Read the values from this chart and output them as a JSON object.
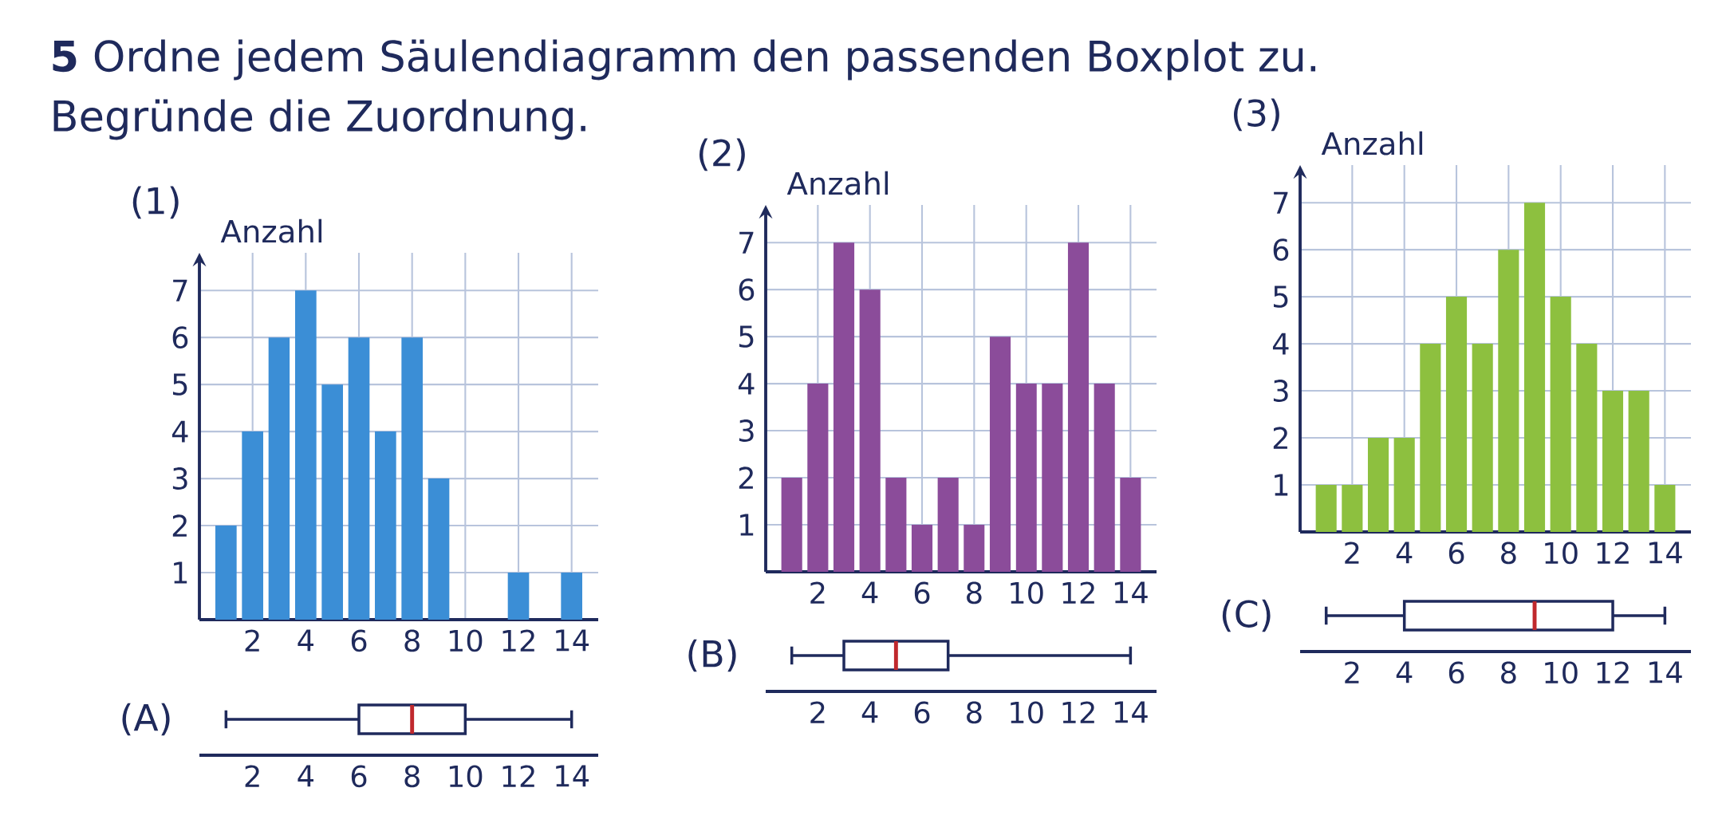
{
  "chart_data": [
    {
      "type": "bar",
      "title": "(1)",
      "ylabel": "Anzahl",
      "color": "#3b8ed6",
      "x": [
        1,
        2,
        3,
        4,
        5,
        6,
        7,
        8,
        9,
        12,
        14
      ],
      "values": [
        2,
        4,
        6,
        7,
        5,
        6,
        4,
        6,
        3,
        1,
        1
      ],
      "xlim": [
        0,
        15
      ],
      "ylim": [
        0,
        7.8
      ],
      "xticks": [
        2,
        4,
        6,
        8,
        10,
        12,
        14
      ],
      "yticks": [
        1,
        2,
        3,
        4,
        5,
        6,
        7
      ],
      "grid": true,
      "annotations": [
        "**5**  Ordne jedem Säulendiagramm den passenden Boxplot zu.",
        "Begründe die Zuordnung."
      ]
    },
    {
      "type": "bar",
      "title": "(2)",
      "ylabel": "Anzahl",
      "color": "#8b4c9a",
      "x": [
        1,
        2,
        3,
        4,
        5,
        6,
        7,
        8,
        9,
        10,
        11,
        12,
        13,
        14
      ],
      "values": [
        2,
        4,
        7,
        6,
        2,
        1,
        2,
        1,
        5,
        4,
        4,
        7,
        4,
        2
      ],
      "xlim": [
        0,
        15
      ],
      "ylim": [
        0,
        7.8
      ],
      "xticks": [
        2,
        4,
        6,
        8,
        10,
        12,
        14
      ],
      "yticks": [
        1,
        2,
        3,
        4,
        5,
        6,
        7
      ],
      "grid": true
    },
    {
      "type": "bar",
      "title": "(3)",
      "ylabel": "Anzahl",
      "color": "#8dc03f",
      "x": [
        1,
        2,
        3,
        4,
        5,
        6,
        7,
        8,
        9,
        10,
        11,
        12,
        13,
        14
      ],
      "values": [
        1,
        1,
        2,
        2,
        4,
        5,
        4,
        6,
        7,
        5,
        4,
        3,
        3,
        1
      ],
      "xlim": [
        0,
        15
      ],
      "ylim": [
        0,
        7.8
      ],
      "xticks": [
        2,
        4,
        6,
        8,
        10,
        12,
        14
      ],
      "yticks": [
        1,
        2,
        3,
        4,
        5,
        6,
        7
      ],
      "grid": true
    },
    {
      "type": "box",
      "orientation": "horizontal",
      "categories": [
        "(A)"
      ],
      "color": "#1f2a5c",
      "boxes": [
        {
          "low": 1,
          "q1": 6,
          "median": 8,
          "q3": 10,
          "high": 14
        }
      ],
      "xlim": [
        0,
        15
      ],
      "xticks": [
        2,
        4,
        6,
        8,
        10,
        12,
        14
      ]
    },
    {
      "type": "box",
      "orientation": "horizontal",
      "categories": [
        "(B)"
      ],
      "color": "#1f2a5c",
      "boxes": [
        {
          "low": 1,
          "q1": 3,
          "median": 5,
          "q3": 7,
          "high": 14
        }
      ],
      "xlim": [
        0,
        15
      ],
      "xticks": [
        2,
        4,
        6,
        8,
        10,
        12,
        14
      ]
    },
    {
      "type": "box",
      "orientation": "horizontal",
      "categories": [
        "(C)"
      ],
      "color": "#1f2a5c",
      "boxes": [
        {
          "low": 1,
          "q1": 4,
          "median": 9,
          "q3": 12,
          "high": 14
        }
      ],
      "xlim": [
        0,
        15
      ],
      "xticks": [
        2,
        4,
        6,
        8,
        10,
        12,
        14
      ]
    }
  ]
}
